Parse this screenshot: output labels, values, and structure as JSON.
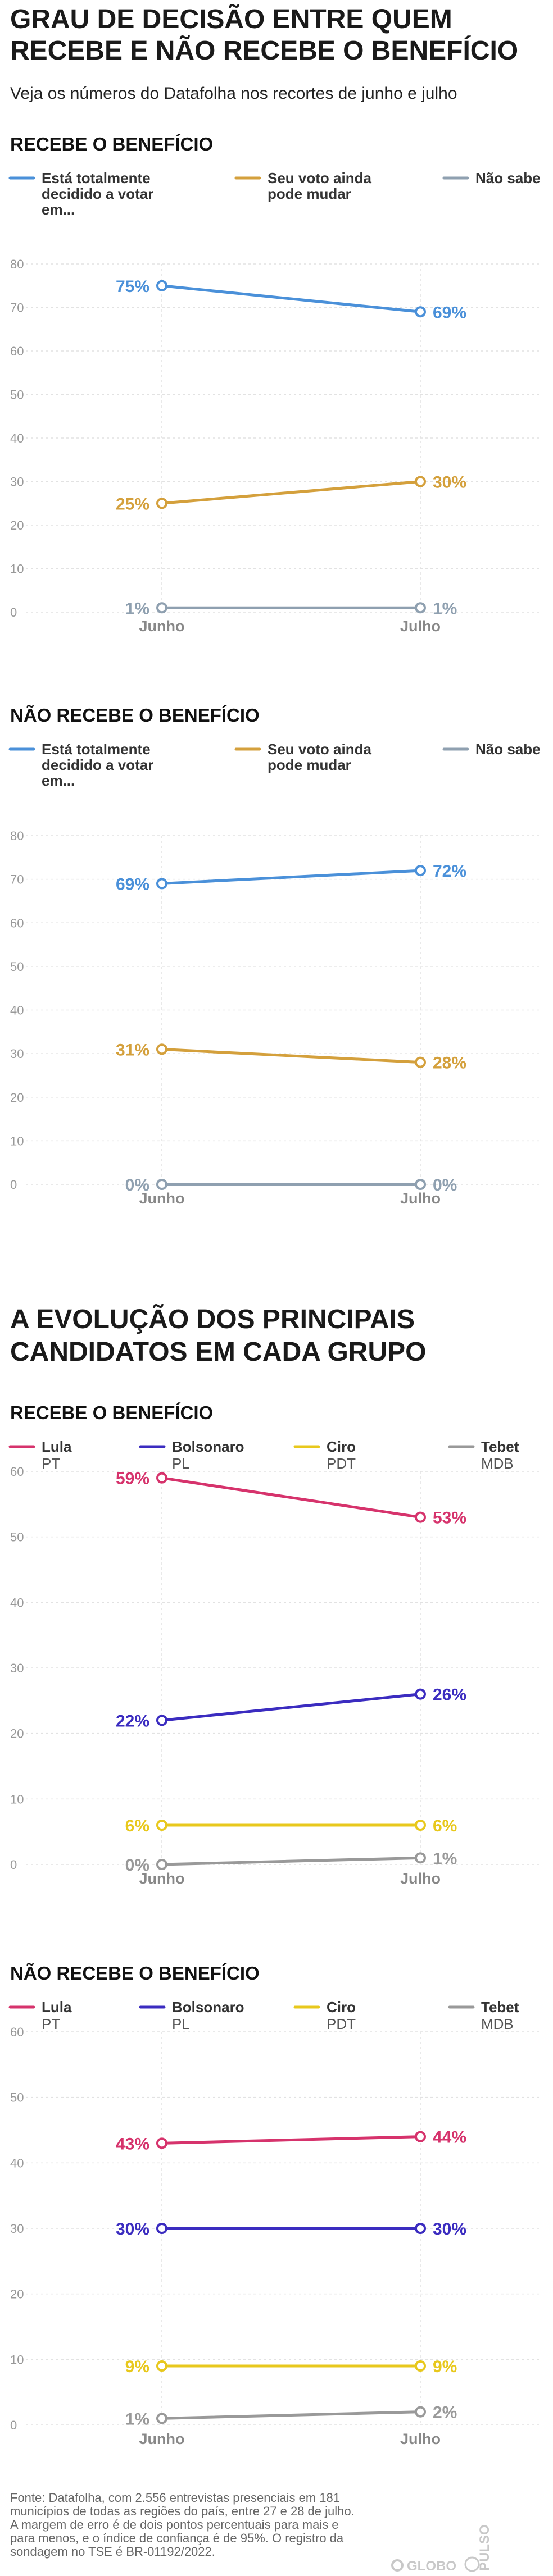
{
  "title": [
    "GRAU DE DECISÃO ENTRE QUEM",
    "RECEBE E NÃO RECEBE O BENEFÍCIO"
  ],
  "subtitle": "Veja os números do Datafolha nos recortes de junho e julho",
  "section2_title": [
    "A EVOLUÇÃO DOS PRINCIPAIS",
    "CANDIDATOS EM CADA GRUPO"
  ],
  "footnote": [
    "Fonte: Datafolha, com 2.556 entrevistas presenciais em 181",
    "municípios de todas as regiões do país, entre 27 e 28 de julho.",
    "A margem de erro é de dois pontos percentuais para mais e",
    "para menos, e o índice de confiança é de 95%. O registro da",
    "sondagem no TSE é BR-01192/2022."
  ],
  "logos": {
    "globo": "GLOBO",
    "pulso": "PULSO"
  },
  "chart_data": [
    {
      "type": "line",
      "heading": "RECEBE O BENEFÍCIO",
      "categories": [
        "Junho",
        "Julho"
      ],
      "ylim": [
        0,
        80
      ],
      "yticks": [
        0,
        10,
        20,
        30,
        40,
        50,
        60,
        70,
        80
      ],
      "grid": true,
      "legend_position": "top",
      "series": [
        {
          "name": "Está totalmente decidido a votar em...",
          "name_lines": [
            "Está totalmente",
            "decidido a votar",
            "em..."
          ],
          "color": "#4a90d9",
          "values": [
            75,
            69
          ],
          "labels": [
            "75%",
            "69%"
          ]
        },
        {
          "name": "Seu voto ainda pode mudar",
          "name_lines": [
            "Seu voto ainda",
            "pode mudar"
          ],
          "color": "#d4a03c",
          "values": [
            25,
            30
          ],
          "labels": [
            "25%",
            "30%"
          ]
        },
        {
          "name": "Não sabe",
          "name_lines": [
            "Não sabe"
          ],
          "color": "#8fa0b0",
          "values": [
            1,
            1
          ],
          "labels": [
            "1%",
            "1%"
          ]
        }
      ]
    },
    {
      "type": "line",
      "heading": "NÃO RECEBE O BENEFÍCIO",
      "categories": [
        "Junho",
        "Julho"
      ],
      "ylim": [
        0,
        80
      ],
      "yticks": [
        0,
        10,
        20,
        30,
        40,
        50,
        60,
        70,
        80
      ],
      "grid": true,
      "legend_position": "top",
      "series": [
        {
          "name": "Está totalmente decidido a votar em...",
          "name_lines": [
            "Está totalmente",
            "decidido a votar",
            "em..."
          ],
          "color": "#4a90d9",
          "values": [
            69,
            72
          ],
          "labels": [
            "69%",
            "72%"
          ]
        },
        {
          "name": "Seu voto ainda pode mudar",
          "name_lines": [
            "Seu voto ainda",
            "pode mudar"
          ],
          "color": "#d4a03c",
          "values": [
            31,
            28
          ],
          "labels": [
            "31%",
            "28%"
          ]
        },
        {
          "name": "Não sabe",
          "name_lines": [
            "Não sabe"
          ],
          "color": "#8fa0b0",
          "values": [
            0,
            0
          ],
          "labels": [
            "0%",
            "0%"
          ]
        }
      ]
    },
    {
      "type": "line",
      "heading": "RECEBE O BENEFÍCIO",
      "categories": [
        "Junho",
        "Julho"
      ],
      "ylim": [
        0,
        60
      ],
      "yticks": [
        0,
        10,
        20,
        30,
        40,
        50,
        60
      ],
      "grid": true,
      "legend_position": "top",
      "series": [
        {
          "name": "Lula",
          "party": "PT",
          "color": "#d6336c",
          "values": [
            59,
            53
          ],
          "labels": [
            "59%",
            "53%"
          ]
        },
        {
          "name": "Bolsonaro",
          "party": "PL",
          "color": "#3b2cc0",
          "values": [
            22,
            26
          ],
          "labels": [
            "22%",
            "26%"
          ]
        },
        {
          "name": "Ciro",
          "party": "PDT",
          "color": "#e8c81c",
          "values": [
            6,
            6
          ],
          "labels": [
            "6%",
            "6%"
          ]
        },
        {
          "name": "Tebet",
          "party": "MDB",
          "color": "#999999",
          "values": [
            0,
            1
          ],
          "labels": [
            "0%",
            "1%"
          ]
        }
      ]
    },
    {
      "type": "line",
      "heading": "NÃO RECEBE O BENEFÍCIO",
      "categories": [
        "Junho",
        "Julho"
      ],
      "ylim": [
        0,
        60
      ],
      "yticks": [
        0,
        10,
        20,
        30,
        40,
        50,
        60
      ],
      "grid": true,
      "legend_position": "top",
      "series": [
        {
          "name": "Lula",
          "party": "PT",
          "color": "#d6336c",
          "values": [
            43,
            44
          ],
          "labels": [
            "43%",
            "44%"
          ]
        },
        {
          "name": "Bolsonaro",
          "party": "PL",
          "color": "#3b2cc0",
          "values": [
            30,
            30
          ],
          "labels": [
            "30%",
            "30%"
          ]
        },
        {
          "name": "Ciro",
          "party": "PDT",
          "color": "#e8c81c",
          "values": [
            9,
            9
          ],
          "labels": [
            "9%",
            "9%"
          ]
        },
        {
          "name": "Tebet",
          "party": "MDB",
          "color": "#999999",
          "values": [
            1,
            2
          ],
          "labels": [
            "1%",
            "2%"
          ]
        }
      ]
    }
  ]
}
